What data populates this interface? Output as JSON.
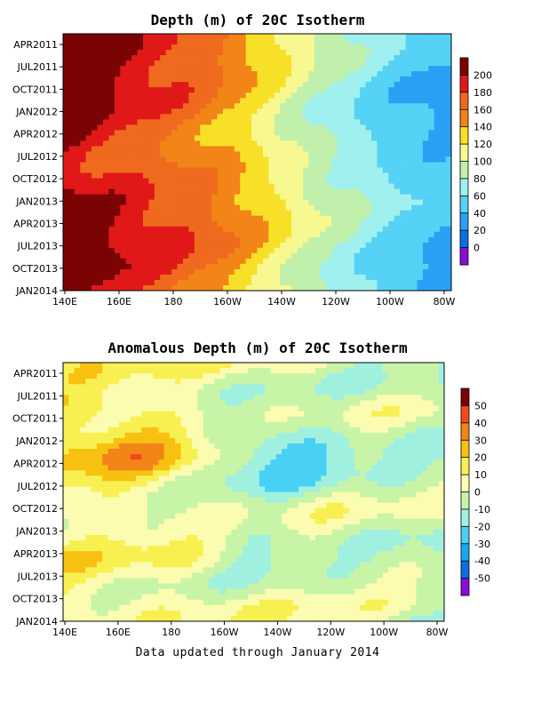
{
  "footer_text": "Data updated through January 2014",
  "chart_data": [
    {
      "type": "heatmap",
      "title": "Depth (m) of 20C Isotherm",
      "x_tick_labels": [
        "140E",
        "160E",
        "180",
        "160W",
        "140W",
        "120W",
        "100W",
        "80W"
      ],
      "y_tick_labels": [
        "APR2011",
        "JUL2011",
        "OCT2011",
        "JAN2012",
        "APR2012",
        "JUL2012",
        "OCT2012",
        "JAN2013",
        "APR2013",
        "JUL2013",
        "OCT2013",
        "JAN2014"
      ],
      "xlim": [
        140,
        280
      ],
      "ylim": [
        "FEB2011",
        "JAN2014"
      ],
      "levels": [
        0,
        20,
        40,
        60,
        80,
        100,
        120,
        140,
        160,
        180,
        200
      ],
      "colorbar_labels": [
        "200",
        "180",
        "160",
        "140",
        "120",
        "100",
        "80",
        "60",
        "40",
        "20",
        "0"
      ],
      "colors": [
        "#8a0cd8",
        "#0a6fe0",
        "#2aa0f5",
        "#55d2f5",
        "#9ff0ef",
        "#c0f0ac",
        "#f8f890",
        "#f8e028",
        "#f28418",
        "#ef6a1e",
        "#e01818",
        "#7a0404"
      ],
      "profile_lon": [
        140,
        155,
        170,
        185,
        200,
        215,
        230,
        245,
        260,
        275
      ],
      "profile_depth": [
        210,
        195,
        180,
        168,
        148,
        120,
        92,
        72,
        52,
        42
      ]
    },
    {
      "type": "heatmap",
      "title": "Anomalous Depth (m) of 20C Isotherm",
      "x_tick_labels": [
        "140E",
        "160E",
        "180",
        "160W",
        "140W",
        "120W",
        "100W",
        "80W"
      ],
      "y_tick_labels": [
        "APR2011",
        "JUL2011",
        "OCT2011",
        "JAN2012",
        "APR2012",
        "JUL2012",
        "OCT2012",
        "JAN2013",
        "APR2013",
        "JUL2013",
        "OCT2013",
        "JAN2014"
      ],
      "xlim": [
        140,
        280
      ],
      "ylim": [
        "FEB2011",
        "JAN2014"
      ],
      "levels": [
        -50,
        -40,
        -30,
        -20,
        -10,
        0,
        10,
        20,
        30,
        40,
        50
      ],
      "colorbar_labels": [
        "50",
        "40",
        "30",
        "20",
        "10",
        "0",
        "-10",
        "-20",
        "-30",
        "-40",
        "-50"
      ],
      "colors": [
        "#8a0cd8",
        "#0a6fe0",
        "#18a8f0",
        "#48d0f5",
        "#a0f0e0",
        "#c8f4a8",
        "#fbfcb0",
        "#f8f050",
        "#f8c010",
        "#f28418",
        "#ef4a18",
        "#7a0404"
      ]
    }
  ]
}
